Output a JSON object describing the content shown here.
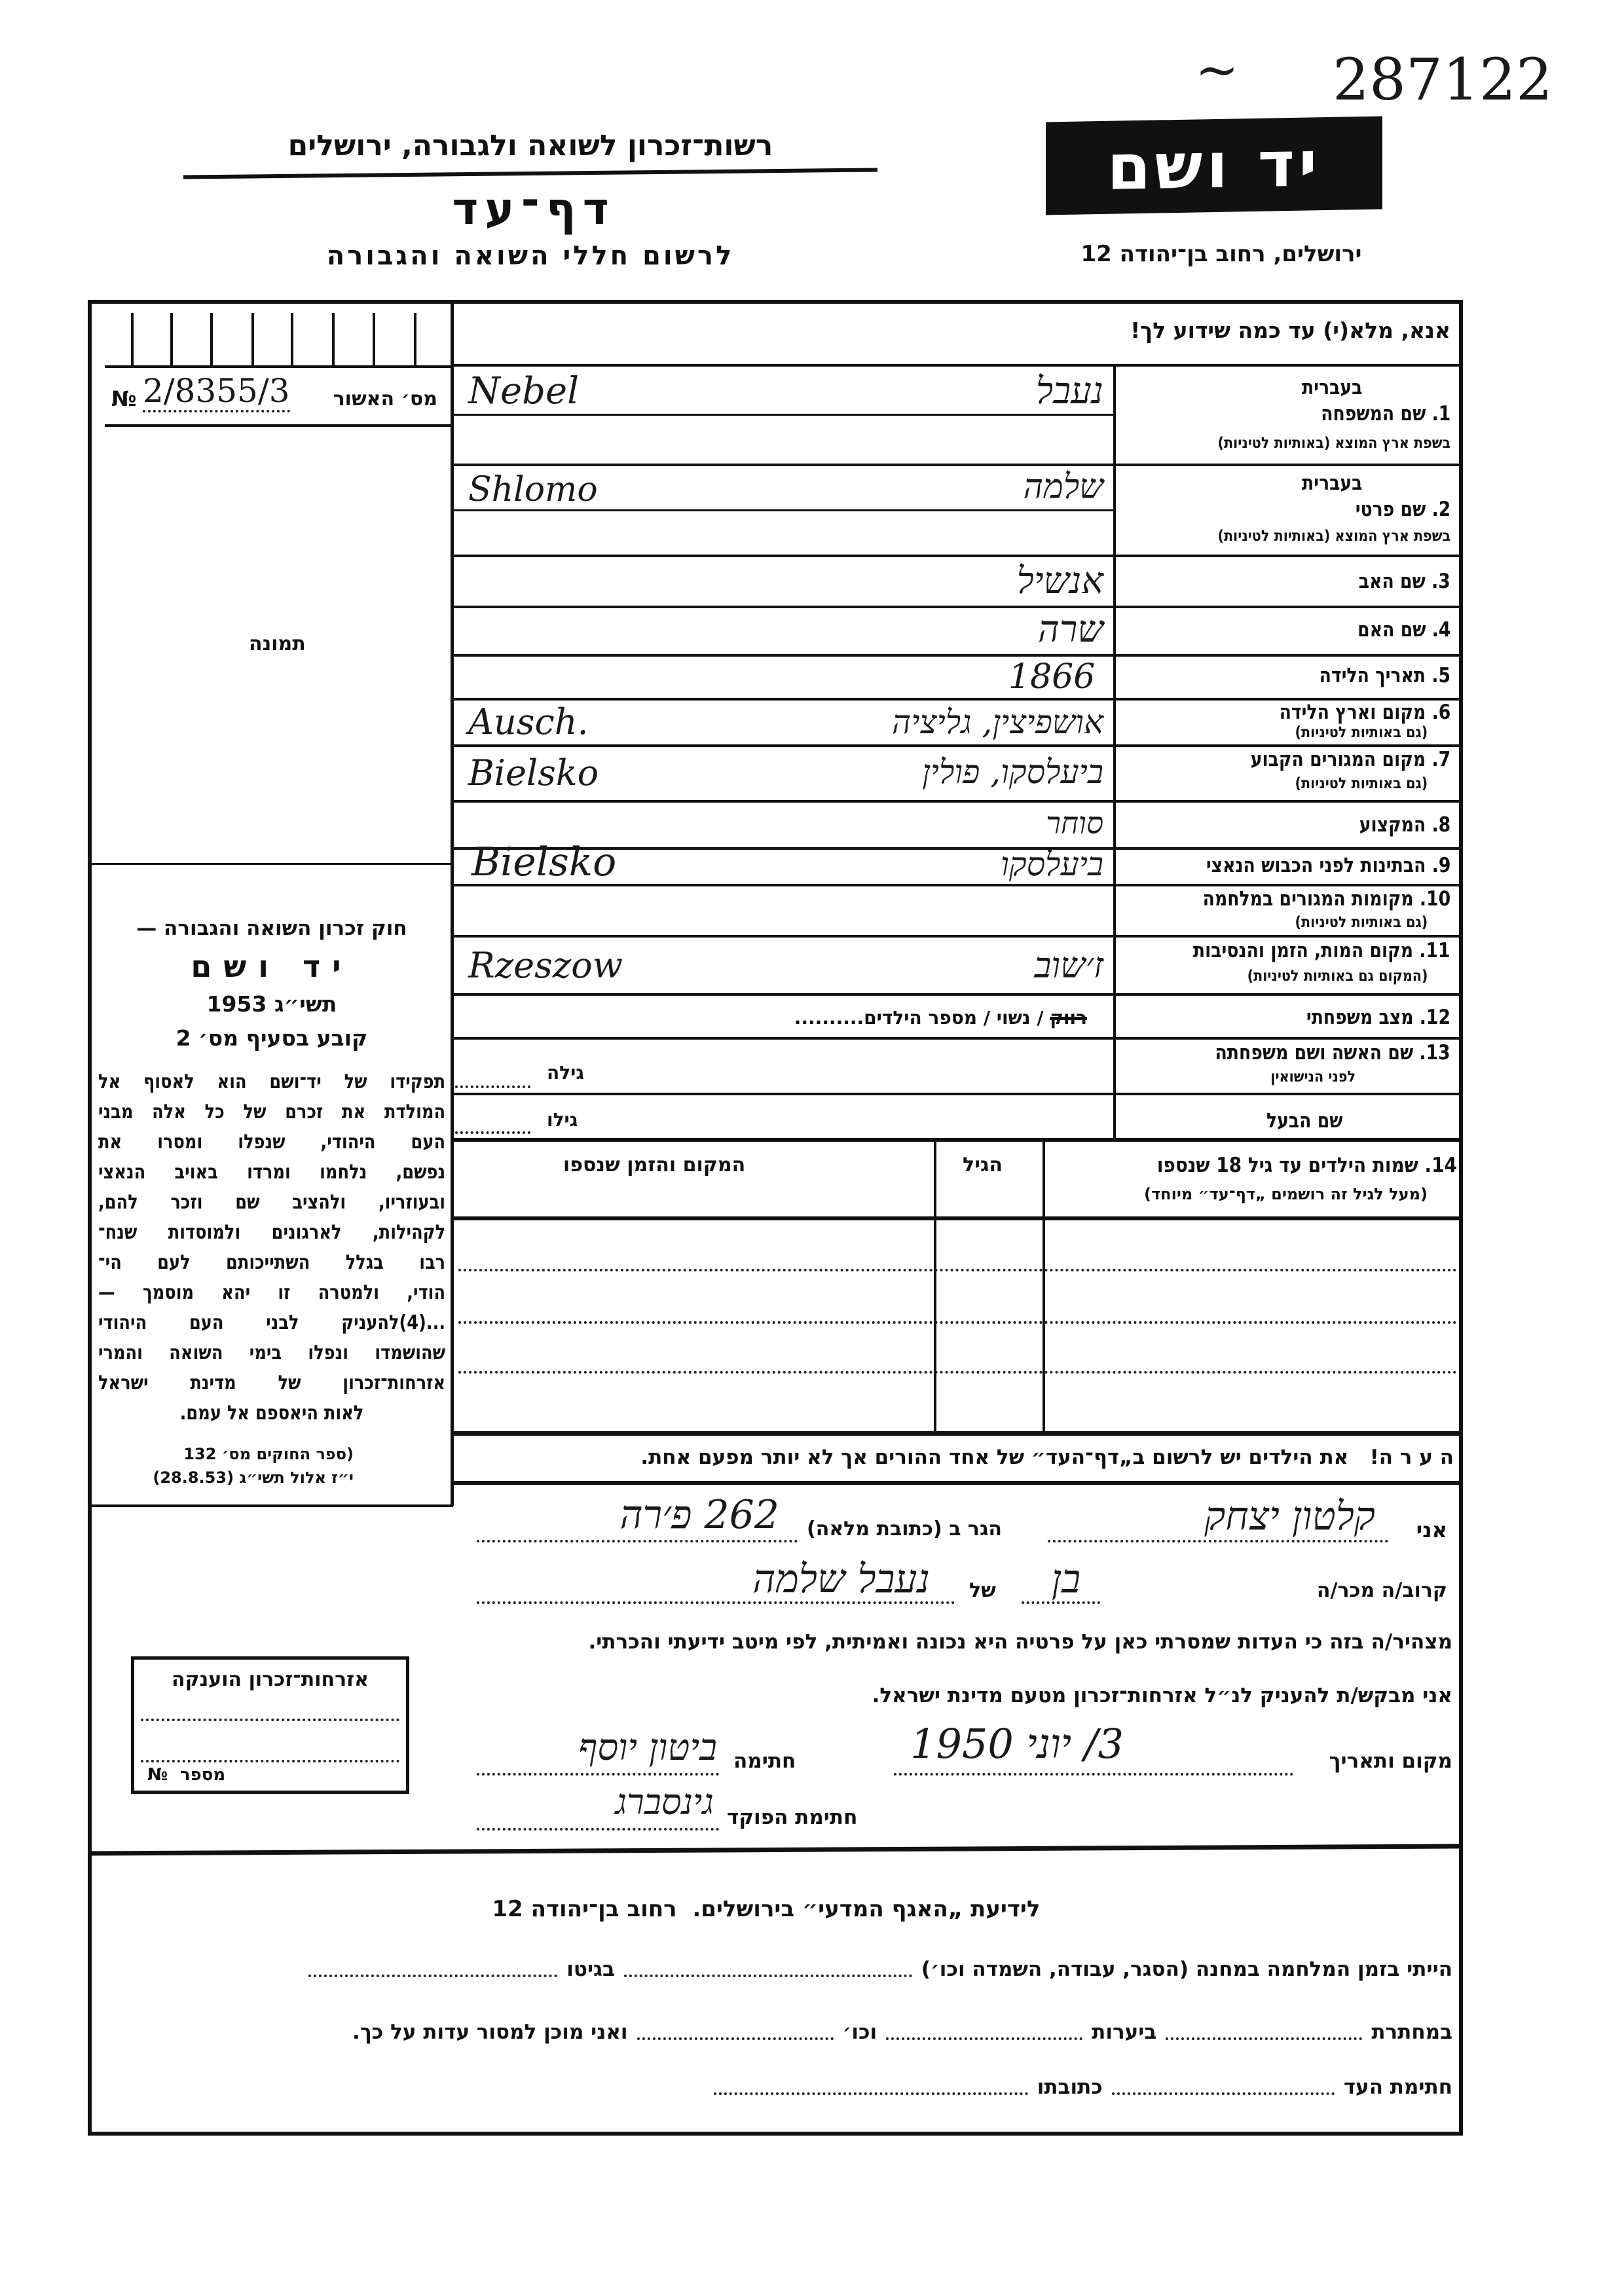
{
  "archive_number": "287122",
  "archive_mark": "~",
  "logo_text": "יד ושם",
  "header": {
    "authority": "רשות־זכרון לשואה ולגבורה, ירושלים",
    "form_title": "דף־עד",
    "subtitle": "לרשום חללי השואה והגבורה",
    "address": "ירושלים, רחוב בן־יהודה 12"
  },
  "instruction": "אנא, מלא(י) עד כמה שידוע לך!",
  "approval": {
    "label": "מס׳ האשור",
    "no_sign": "№",
    "value": "2/8355/3"
  },
  "photo_label": "תמונה",
  "law": {
    "title": "חוק זכרון השואה והגבורה —",
    "name": "יד ושם",
    "year": "תשי״ג 1953",
    "clause": "קובע בסעיף מס׳ 2",
    "lines": [
      "תפקידו של יד־ושם הוא לאסוף אל",
      "המולדת את זכרם של כל אלה מבני",
      "העם היהודי, שנפלו ומסרו את",
      "נפשם, נלחמו ומרדו באויב הנאצי",
      "ובעוזריו, ולהציב שם וזכר להם,",
      "לקהילות, לארגונים ולמוסדות שנח־",
      "רבו בגלל השתייכותם לעם הי־",
      "הודי, ולמטרה זו יהא מוסמך —",
      "...(4)להעניק לבני העם היהודי",
      "שהושמדו ונפלו בימי השואה והמרי",
      "אזרחות־זכרון של מדינת ישראל",
      "לאות היאספם אל עמם."
    ],
    "ref1": "(ספר החוקים מס׳ 132",
    "ref2": "י״ז אלול תשי״ג (28.8.53)"
  },
  "fields": {
    "in_hebrew": "בעברית",
    "latin_note": "בשפת ארץ המוצא (באותיות לטיניות)",
    "also_latin": "(גם באותיות לטיניות)",
    "f1": "1. שם המשפחה",
    "f2": "2. שם פרטי",
    "f3": "3. שם האב",
    "f4": "4. שם האם",
    "f5": "5. תאריך הלידה",
    "f6": "6. מקום וארץ הלידה",
    "f7": "7. מקום המגורים הקבוע",
    "f8": "8. המקצוע",
    "f9": "9. הבתינות לפני הכבוש הנאצי",
    "f10": "10. מקומות המגורים במלחמה",
    "f11": "11. מקום המות, הזמן והנסיבות",
    "f11_note": "(המקום גם באותיות לטיניות)",
    "f12": "12. מצב משפחתי",
    "f12_options_struck": "רווק",
    "f12_options": "/ נשוי / מספר הילדים..........",
    "f13": "13. שם האשה ושם משפחתה",
    "f13_note": "לפני הנישואין",
    "husband": "שם הבעל",
    "her_age": "גילה",
    "his_age": "גילו"
  },
  "values": {
    "surname_he": "נעבל",
    "surname_latin": "Nebel",
    "first_he": "שלמה",
    "first_latin": "Shlomo",
    "father": "אנשיל",
    "mother": "שרה",
    "birth_date": "1866",
    "birth_place_he": "אושפיצין, גליציה",
    "birth_place_latin": "Ausch.",
    "residence_he": "ביעלסקו, פולין",
    "residence_latin": "Bielsko",
    "profession": "סוחר",
    "prewar_he": "ביעלסקו",
    "prewar_latin": "Bielsko",
    "death_he": "ז׳שוב",
    "death_latin": "Rzeszow"
  },
  "children": {
    "header": "14. שמות הילדים עד גיל 18 שנספו",
    "note": "(מעל לגיל זה רושמים „דף־עד״ מיוחד)",
    "age_col": "הגיל",
    "place_col": "המקום והזמן שנספו"
  },
  "remark": "ה ע ר ה!   את הילדים יש לרשום ב„דף־העד״ של אחד ההורים אך לא יותר מפעם אחת.",
  "witness": {
    "i": "אני",
    "name": "קלטון יצחק",
    "lives_at": "הגר ב (כתובת מלאה)",
    "address": "262 פ׳רה",
    "relation_label": "קרוב/ה מכר/ה",
    "relation": "בן",
    "of": "של",
    "of_name": "נעבל שלמה",
    "declare": "מצהיר/ה בזה כי העדות שמסרתי כאן על פרטיה היא נכונה ואמיתית, לפי מיטב ידיעתי והכרתי.",
    "request": "אני מבקש/ת להעניק לנ״ל אזרחות־זכרון מטעם מדינת ישראל.",
    "place_date_label": "מקום ותאריך",
    "place_date": "3/ יוני 1950",
    "signature_label": "חתימה",
    "signature": "ביטון יוסף",
    "officer_label": "חתימת הפוקד",
    "officer_signature": "גינסברג"
  },
  "citizenship_box": {
    "title": "אזרחות־זכרון הוענקה",
    "number_label": "מספר",
    "no_sign": "№"
  },
  "footer": {
    "title": "לידיעת „האגף המדעי״ בירושלים.  רחוב בן־יהודה 12",
    "l1a": "הייתי בזמן המלחמה במחנה (הסגר, עבודה, השמדה וכו׳)",
    "l1b": "בגיטו",
    "l2a": "במחתרת",
    "l2b": "ביערות",
    "l2c": "וכו׳",
    "l2d": "ואני מוכן למסור עדות על כך.",
    "l3a": "חתימת העד",
    "l3b": "כתובתו"
  }
}
